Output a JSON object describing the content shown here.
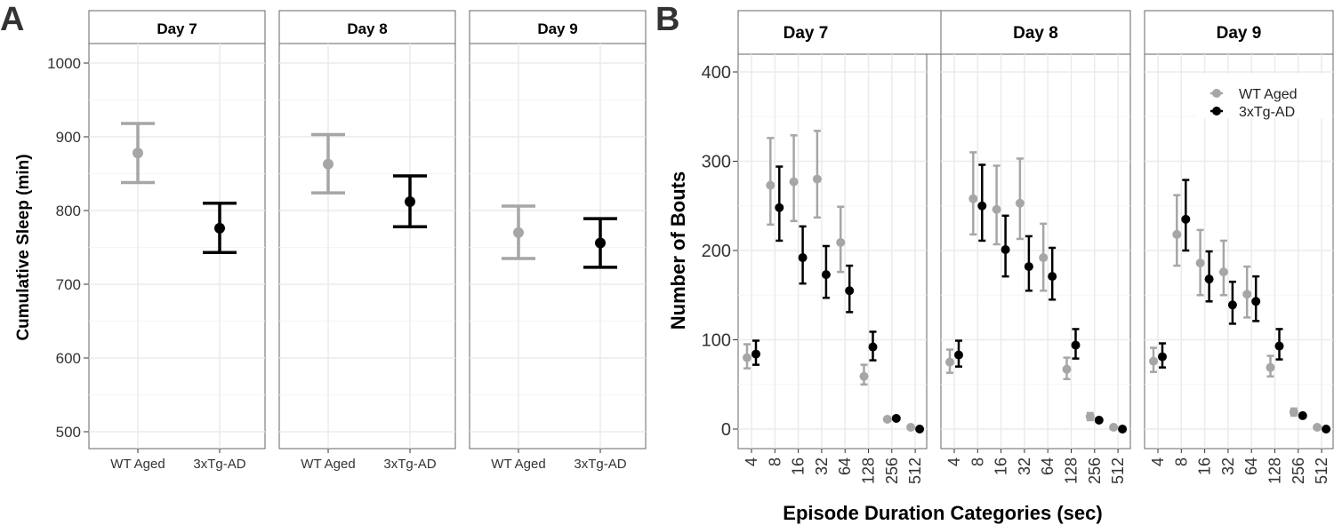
{
  "chart_data": [
    {
      "panel_label": "A",
      "type": "scatter",
      "ylabel": "Cumulative Sleep (min)",
      "ylim": [
        490,
        1030
      ],
      "yticks": [
        500,
        600,
        700,
        800,
        900,
        1000
      ],
      "categories": [
        "WT Aged",
        "3xTg-AD"
      ],
      "facets": [
        {
          "title": "Day 7",
          "points": [
            {
              "group": "WT Aged",
              "mean": 878,
              "lo": 838,
              "hi": 918
            },
            {
              "group": "3xTg-AD",
              "mean": 776,
              "lo": 743,
              "hi": 810
            }
          ]
        },
        {
          "title": "Day 8",
          "points": [
            {
              "group": "WT Aged",
              "mean": 863,
              "lo": 824,
              "hi": 903
            },
            {
              "group": "3xTg-AD",
              "mean": 812,
              "lo": 778,
              "hi": 847
            }
          ]
        },
        {
          "title": "Day 9",
          "points": [
            {
              "group": "WT Aged",
              "mean": 770,
              "lo": 735,
              "hi": 806
            },
            {
              "group": "3xTg-AD",
              "mean": 756,
              "lo": 723,
              "hi": 789
            }
          ]
        }
      ]
    },
    {
      "panel_label": "B",
      "type": "scatter",
      "ylabel": "Number of Bouts",
      "xlabel": "Episode Duration Categories (sec)",
      "ylim": [
        -15,
        420
      ],
      "yticks": [
        0,
        100,
        200,
        300,
        400
      ],
      "categories": [
        "4",
        "8",
        "16",
        "32",
        "64",
        "128",
        "256",
        "512"
      ],
      "legend": {
        "position": "top-right",
        "entries": [
          "WT Aged",
          "3xTg-AD"
        ]
      },
      "facets": [
        {
          "title": "Day 7",
          "series": [
            {
              "name": "WT Aged",
              "mean": [
                80,
                273,
                277,
                280,
                209,
                59,
                11,
                2
              ],
              "lo": [
                68,
                229,
                233,
                237,
                176,
                50,
                11,
                2
              ],
              "hi": [
                95,
                326,
                329,
                334,
                249,
                72,
                11,
                2
              ]
            },
            {
              "name": "3xTg-AD",
              "mean": [
                84,
                248,
                192,
                173,
                155,
                92,
                12,
                0
              ],
              "lo": [
                72,
                211,
                163,
                147,
                131,
                77,
                12,
                0
              ],
              "hi": [
                99,
                294,
                227,
                205,
                183,
                109,
                12,
                0
              ]
            }
          ]
        },
        {
          "title": "Day 8",
          "series": [
            {
              "name": "WT Aged",
              "mean": [
                75,
                258,
                246,
                253,
                192,
                67,
                14,
                2
              ],
              "lo": [
                63,
                218,
                207,
                213,
                155,
                56,
                10,
                2
              ],
              "hi": [
                89,
                310,
                295,
                303,
                230,
                80,
                18,
                2
              ]
            },
            {
              "name": "3xTg-AD",
              "mean": [
                83,
                250,
                201,
                182,
                171,
                94,
                10,
                0
              ],
              "lo": [
                70,
                211,
                171,
                155,
                145,
                79,
                10,
                0
              ],
              "hi": [
                99,
                296,
                239,
                216,
                203,
                112,
                10,
                0
              ]
            }
          ]
        },
        {
          "title": "Day 9",
          "series": [
            {
              "name": "WT Aged",
              "mean": [
                76,
                218,
                186,
                176,
                151,
                69,
                19,
                2
              ],
              "lo": [
                64,
                183,
                150,
                150,
                125,
                59,
                15,
                2
              ],
              "hi": [
                91,
                262,
                223,
                211,
                182,
                82,
                23,
                2
              ]
            },
            {
              "name": "3xTg-AD",
              "mean": [
                81,
                235,
                168,
                139,
                143,
                93,
                15,
                0
              ],
              "lo": [
                69,
                200,
                143,
                118,
                121,
                78,
                15,
                0
              ],
              "hi": [
                96,
                279,
                199,
                165,
                171,
                112,
                15,
                0
              ]
            }
          ]
        }
      ]
    }
  ],
  "colors": {
    "WT Aged": "#a6a6a6",
    "3xTg-AD": "#000000"
  }
}
